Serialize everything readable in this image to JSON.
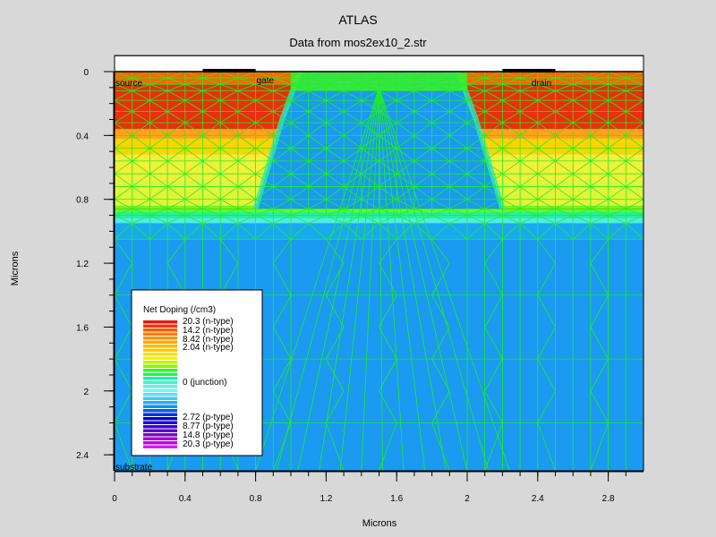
{
  "chart_data": {
    "type": "heatmap",
    "title": "ATLAS",
    "subtitle": "Data from mos2ex10_2.str",
    "xlabel": "Microns",
    "ylabel": "Microns",
    "xlim": [
      0,
      3.0
    ],
    "ylim": [
      0,
      2.5
    ],
    "xticks": [
      "0",
      "0.4",
      "0.8",
      "1.2",
      "1.6",
      "2",
      "2.4",
      "2.8"
    ],
    "xtick_values": [
      0,
      0.4,
      0.8,
      1.2,
      1.6,
      2.0,
      2.4,
      2.8
    ],
    "yticks": [
      "0",
      "0.4",
      "0.8",
      "1.2",
      "1.6",
      "2",
      "2.4"
    ],
    "ytick_values": [
      0,
      0.4,
      0.8,
      1.2,
      1.6,
      2.0,
      2.4
    ],
    "oxide_top": -0.1,
    "regions": [
      {
        "name": "gate",
        "x": [
          0.5,
          0.8
        ],
        "note": "electrode"
      },
      {
        "name": "drain-contact",
        "x": [
          2.2,
          2.5
        ],
        "note": "electrode"
      }
    ],
    "region_labels": [
      {
        "id": "source",
        "text": "source",
        "x": 0.0,
        "y": 0.1
      },
      {
        "id": "gate",
        "text": "gate",
        "x": 0.8,
        "y": 0.08
      },
      {
        "id": "drain",
        "text": "drain",
        "x": 2.36,
        "y": 0.1
      },
      {
        "id": "substrate",
        "text": "substrate",
        "x": 0.0,
        "y": 2.5
      }
    ],
    "doping_bands": [
      {
        "y0": 0.0,
        "y1": 0.08,
        "color": "#ff6600"
      },
      {
        "y0": 0.08,
        "y1": 0.36,
        "color": "#e8300c"
      },
      {
        "y0": 0.36,
        "y1": 0.42,
        "color": "#ffa31a"
      },
      {
        "y0": 0.42,
        "y1": 0.52,
        "color": "#ffd400"
      },
      {
        "y0": 0.52,
        "y1": 0.68,
        "color": "#f3f03a"
      },
      {
        "y0": 0.68,
        "y1": 0.84,
        "color": "#e2f43a"
      },
      {
        "y0": 0.84,
        "y1": 0.88,
        "color": "#7af020"
      },
      {
        "y0": 0.88,
        "y1": 0.92,
        "color": "#24f0a0"
      },
      {
        "y0": 0.92,
        "y1": 0.95,
        "color": "#50e8f0"
      },
      {
        "y0": 0.95,
        "y1": 1.05,
        "color": "#1aa9f0"
      },
      {
        "y0": 1.05,
        "y1": 2.5,
        "color": "#1a9af0"
      }
    ],
    "channel_region": {
      "x_left": 0.9,
      "x_right": 2.1,
      "y_top": 0.3,
      "y_bottom": 0.86,
      "color": "#1a9af0"
    },
    "mesh_color": "#22ee22",
    "legend": {
      "title": "Net Doping (/cm3)",
      "entries": [
        {
          "label": "20.3 (n-type)",
          "color": "#ff0000"
        },
        {
          "label": "14.2 (n-type)",
          "color": "#ff4400"
        },
        {
          "label": "8.42 (n-type)",
          "color": "#ff8800"
        },
        {
          "label": "2.04 (n-type)",
          "color": "#ffcc00"
        },
        {
          "label": "0 (junction)",
          "color": "#40f0e0"
        },
        {
          "label": "2.72 (p-type)",
          "color": "#0000d8"
        },
        {
          "label": "8.77 (p-type)",
          "color": "#4000d0"
        },
        {
          "label": "14.8 (p-type)",
          "color": "#8000c8"
        },
        {
          "label": "20.3 (p-type)",
          "color": "#c000e0"
        }
      ],
      "swatch_colors": [
        "#e01818",
        "#ff3000",
        "#ff5a00",
        "#ff7a00",
        "#ff9400",
        "#ffa600",
        "#ffb800",
        "#ffca00",
        "#ffdc00",
        "#f0f000",
        "#c8f000",
        "#90f000",
        "#40f020",
        "#20f060",
        "#20f0a0",
        "#40f0d0",
        "#60f0e0",
        "#80f0f0",
        "#60e0f0",
        "#40c8f0",
        "#20b0f0",
        "#1090f0",
        "#0060e8",
        "#0030e0",
        "#0000d8",
        "#2000d0",
        "#4000d0",
        "#6000c8",
        "#8000c8",
        "#a000d0",
        "#c000e0",
        "#d020e8"
      ],
      "position": "lower-left"
    }
  }
}
